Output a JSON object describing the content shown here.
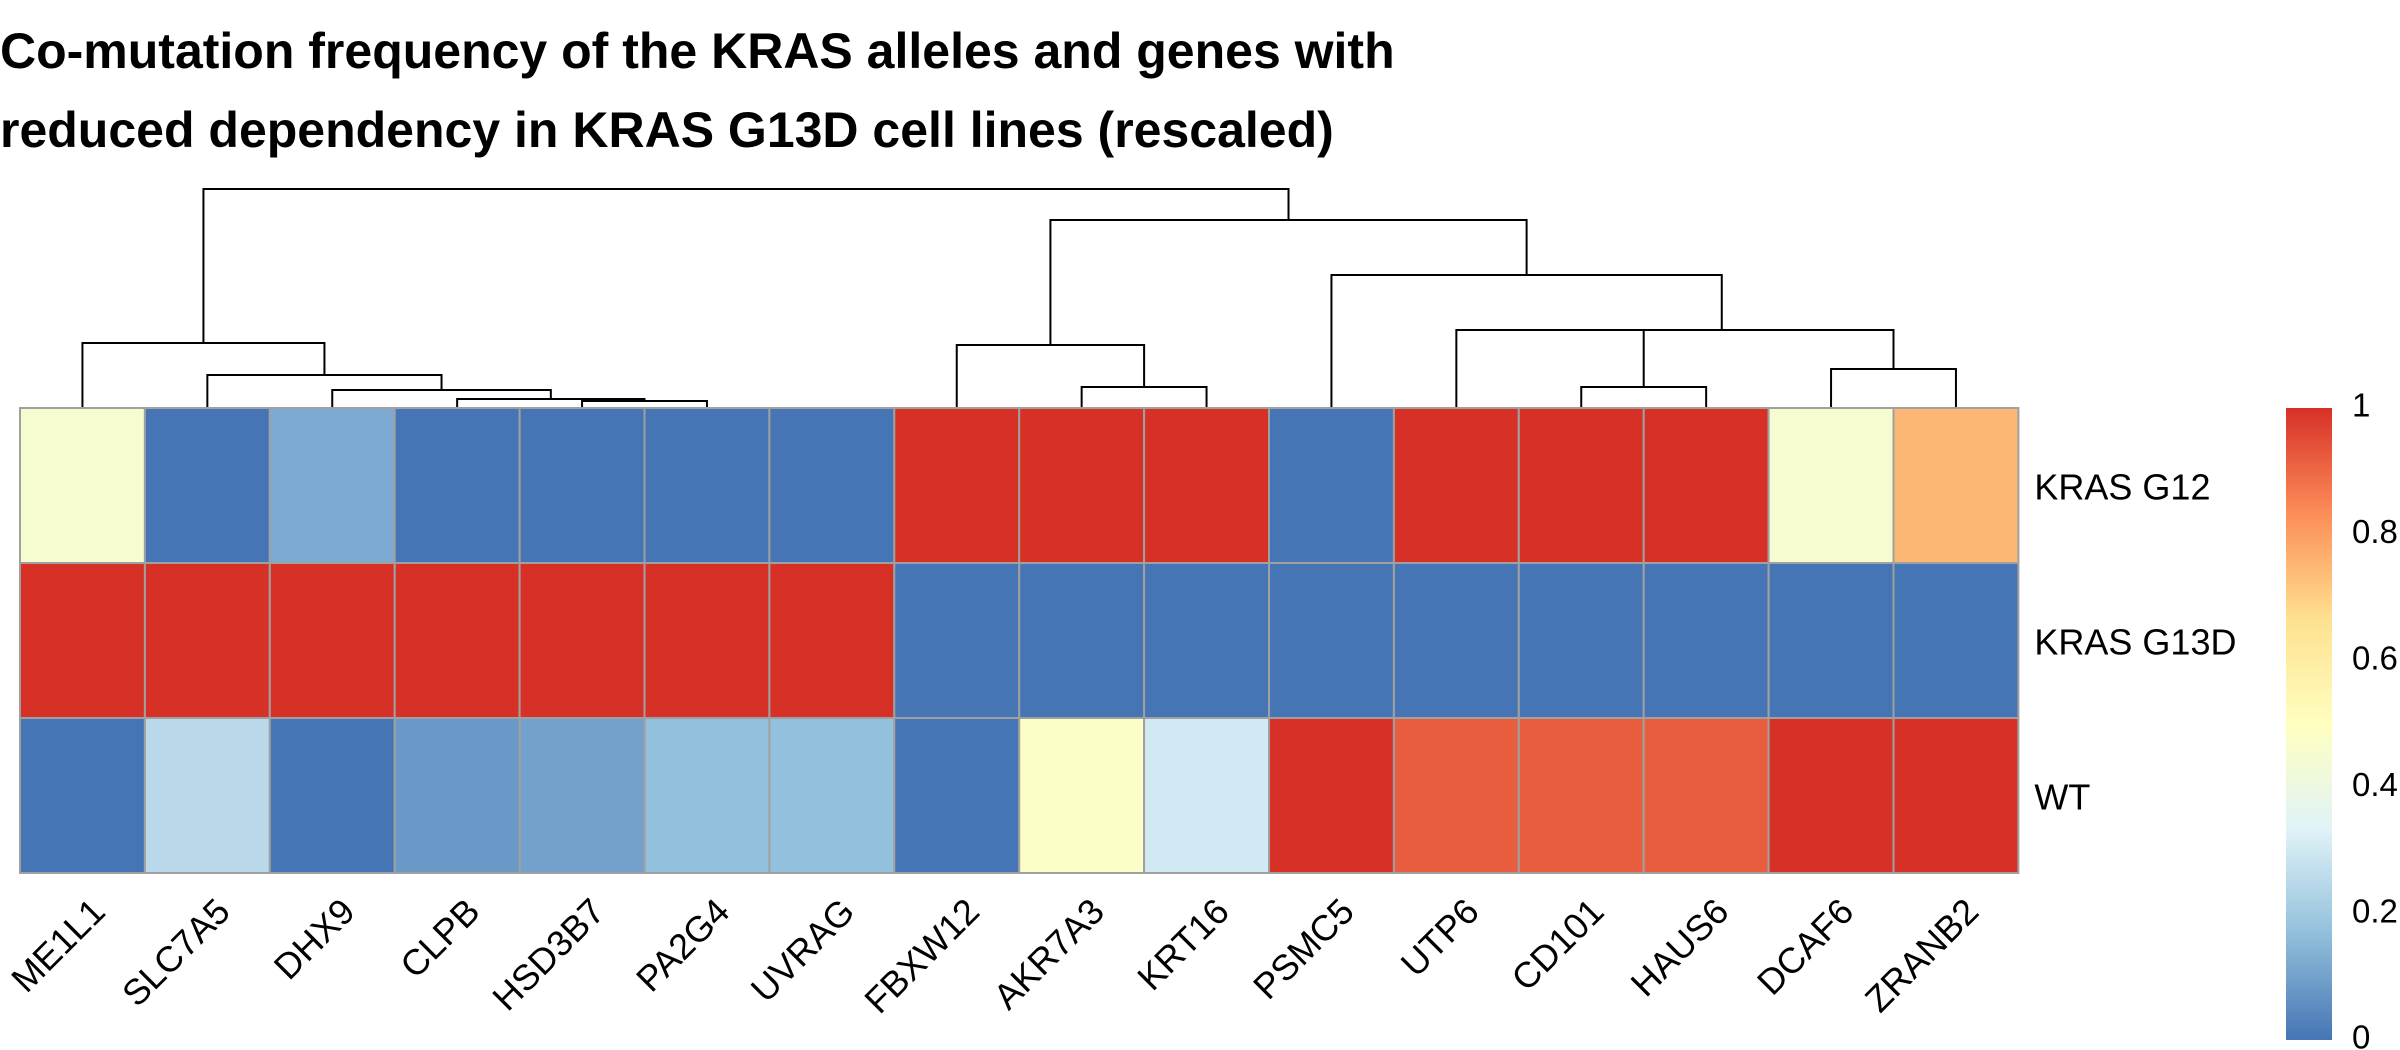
{
  "chart_data": {
    "type": "heatmap",
    "title_lines": [
      "Co-mutation frequency of the KRAS alleles and genes with",
      "reduced dependency in KRAS G13D cell lines (rescaled)"
    ],
    "columns": [
      "ME1L1",
      "SLC7A5",
      "DHX9",
      "CLPB",
      "HSD3B7",
      "PA2G4",
      "UVRAG",
      "FBXW12",
      "AKR7A3",
      "KRT16",
      "PSMC5",
      "UTP6",
      "CD101",
      "HAUS6",
      "DCAF6",
      "ZRANB2"
    ],
    "rows": [
      "KRAS G12",
      "KRAS G13D",
      "WT"
    ],
    "values": [
      [
        0.45,
        0.0,
        0.12,
        0.0,
        0.0,
        0.0,
        0.0,
        1.0,
        1.0,
        1.0,
        0.0,
        1.0,
        1.0,
        1.0,
        0.45,
        0.75
      ],
      [
        1.0,
        1.0,
        1.0,
        1.0,
        1.0,
        1.0,
        1.0,
        0.0,
        0.0,
        0.0,
        0.0,
        0.0,
        0.0,
        0.0,
        0.0,
        0.0
      ],
      [
        0.0,
        0.25,
        0.0,
        0.08,
        0.1,
        0.17,
        0.17,
        0.0,
        0.48,
        0.3,
        1.0,
        0.92,
        0.92,
        0.92,
        1.0,
        1.0
      ]
    ],
    "color_scale": {
      "range": [
        0,
        1
      ],
      "ticks": [
        "0",
        "0.2",
        "0.4",
        "0.6",
        "0.8",
        "1"
      ],
      "stops": [
        "#4575B4",
        "#91BFDB",
        "#E0F3F8",
        "#FFFFBF",
        "#FEE090",
        "#FC8D59",
        "#D73027"
      ]
    },
    "cell_border_color": "#A0A0A0"
  }
}
